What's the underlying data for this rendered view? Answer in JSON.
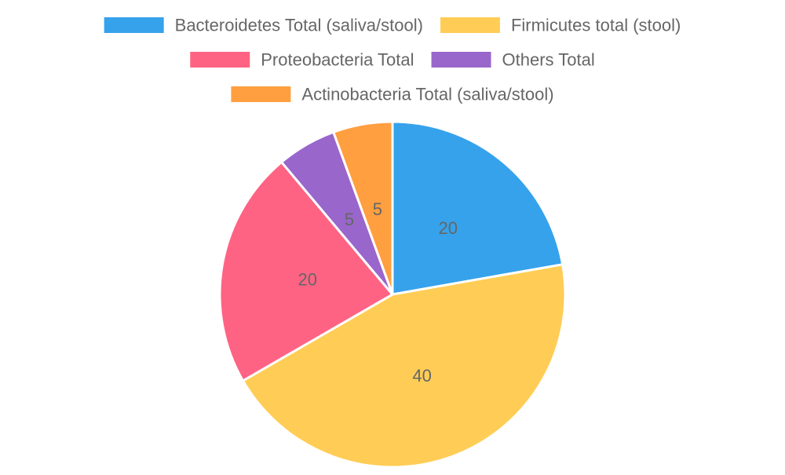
{
  "chart_data": {
    "type": "pie",
    "title": "",
    "legend_position": "top",
    "slices": [
      {
        "label": "Bacteroidetes Total (saliva/stool)",
        "value": 20,
        "color": "#36a2eb"
      },
      {
        "label": "Firmicutes total (stool)",
        "value": 40,
        "color": "#ffcd56"
      },
      {
        "label": "Proteobacteria Total",
        "value": 20,
        "color": "#ff6384"
      },
      {
        "label": "Others Total",
        "value": 5,
        "color": "#9966cc"
      },
      {
        "label": "Actinobacteria Total (saliva/stool)",
        "value": 5,
        "color": "#ff9f40"
      }
    ]
  }
}
